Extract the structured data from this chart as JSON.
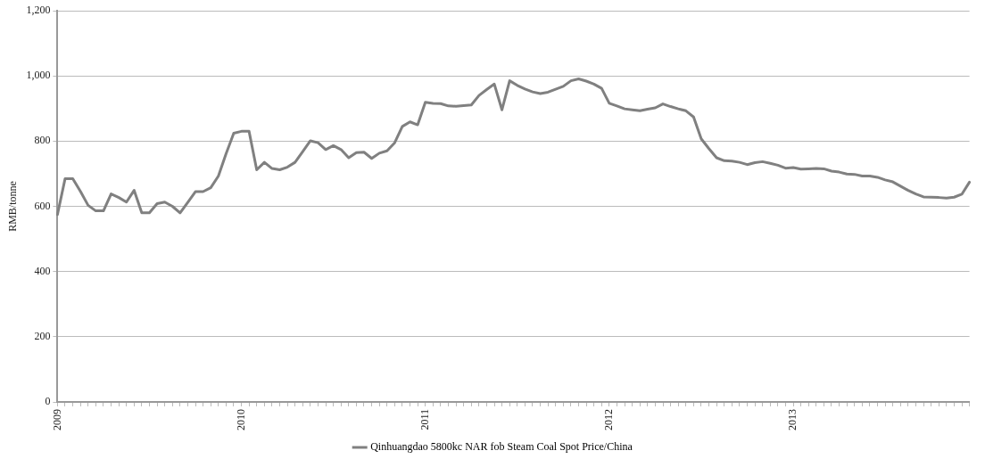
{
  "chart_data": {
    "type": "line",
    "ylabel": "RMB/tonne",
    "categories": [
      "2009",
      null,
      null,
      null,
      null,
      null,
      null,
      null,
      null,
      null,
      null,
      null,
      null,
      null,
      null,
      null,
      null,
      null,
      null,
      null,
      null,
      null,
      null,
      null,
      "2010",
      null,
      null,
      null,
      null,
      null,
      null,
      null,
      null,
      null,
      null,
      null,
      null,
      null,
      null,
      null,
      null,
      null,
      null,
      null,
      null,
      null,
      null,
      null,
      "2011",
      null,
      null,
      null,
      null,
      null,
      null,
      null,
      null,
      null,
      null,
      null,
      null,
      null,
      null,
      null,
      null,
      null,
      null,
      null,
      null,
      null,
      null,
      null,
      "2012",
      null,
      null,
      null,
      null,
      null,
      null,
      null,
      null,
      null,
      null,
      null,
      null,
      null,
      null,
      null,
      null,
      null,
      null,
      null,
      null,
      null,
      null,
      null,
      "2013",
      null,
      null,
      null,
      null,
      null,
      null,
      null,
      null,
      null,
      null,
      null,
      null,
      null,
      null,
      null,
      null,
      null,
      null,
      null,
      null,
      null,
      null,
      null
    ],
    "series": [
      {
        "name": "Qinhuangdao 5800kc NAR fob Steam Coal Spot Price/China",
        "color": "#808080",
        "values": [
          575,
          685,
          685,
          646,
          603,
          586,
          586,
          638,
          627,
          613,
          649,
          580,
          580,
          608,
          613,
          600,
          580,
          612,
          645,
          645,
          657,
          693,
          761,
          824,
          830,
          830,
          712,
          735,
          716,
          712,
          720,
          735,
          768,
          801,
          795,
          774,
          786,
          774,
          749,
          765,
          766,
          747,
          763,
          770,
          795,
          845,
          859,
          850,
          919,
          916,
          915,
          908,
          907,
          909,
          911,
          940,
          958,
          975,
          896,
          985,
          971,
          960,
          951,
          946,
          950,
          959,
          968,
          985,
          991,
          984,
          975,
          962,
          916,
          908,
          899,
          896,
          893,
          898,
          902,
          914,
          906,
          899,
          893,
          874,
          807,
          777,
          749,
          740,
          739,
          735,
          728,
          734,
          737,
          732,
          726,
          717,
          719,
          714,
          715,
          716,
          715,
          708,
          705,
          699,
          698,
          693,
          693,
          689,
          681,
          675,
          662,
          649,
          638,
          629,
          628,
          627,
          625,
          628,
          637,
          674
        ]
      }
    ],
    "ylim": [
      0,
      1200
    ],
    "yticks": [
      {
        "value": 0,
        "label": "0"
      },
      {
        "value": 200,
        "label": "200"
      },
      {
        "value": 400,
        "label": "400"
      },
      {
        "value": 600,
        "label": "600"
      },
      {
        "value": 800,
        "label": "800"
      },
      {
        "value": 1000,
        "label": "1,000"
      },
      {
        "value": 1200,
        "label": "1,200"
      }
    ],
    "grid": "y",
    "legend": "bottom",
    "marker": "none",
    "line_style": "solid"
  }
}
